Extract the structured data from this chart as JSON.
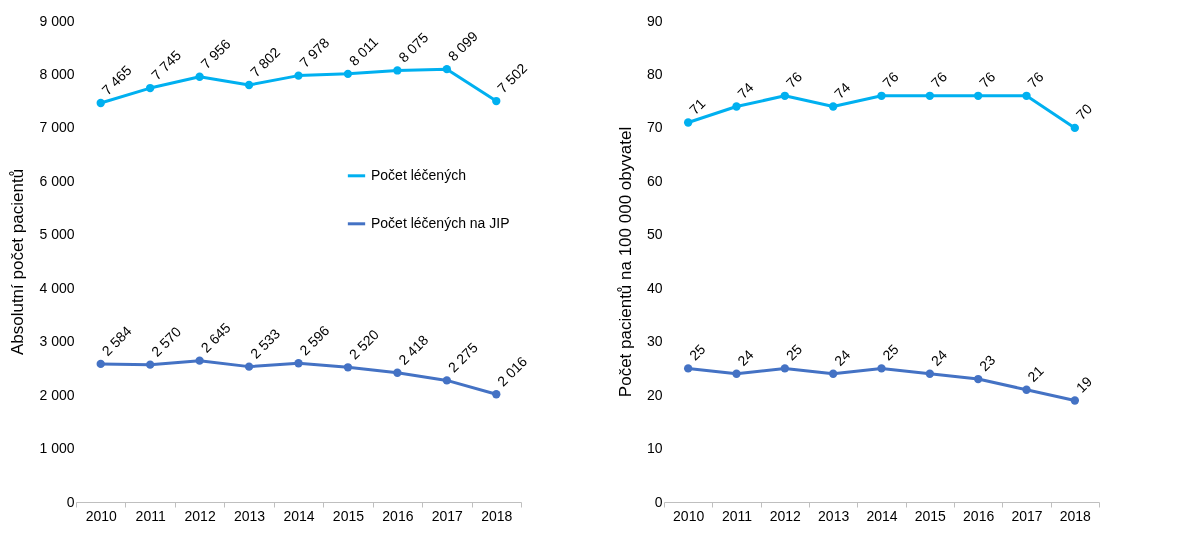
{
  "chart_data": [
    {
      "type": "line",
      "ylabel": "Absolutní počet pacientů",
      "categories": [
        "2010",
        "2011",
        "2012",
        "2013",
        "2014",
        "2015",
        "2016",
        "2017",
        "2018"
      ],
      "series": [
        {
          "name": "Počet léčených",
          "color": "#00b0f0",
          "values": [
            7465,
            7745,
            7956,
            7802,
            7978,
            8011,
            8075,
            8099,
            7502
          ],
          "value_labels": [
            "7 465",
            "7 745",
            "7 956",
            "7 802",
            "7 978",
            "8 011",
            "8 075",
            "8 099",
            "7 502"
          ]
        },
        {
          "name": "Počet léčených na JIP",
          "color": "#4472c4",
          "values": [
            2584,
            2570,
            2645,
            2533,
            2596,
            2520,
            2418,
            2275,
            2016
          ],
          "value_labels": [
            "2 584",
            "2 570",
            "2 645",
            "2 533",
            "2 596",
            "2 520",
            "2 418",
            "2 275",
            "2 016"
          ]
        }
      ],
      "ylim": [
        0,
        9000
      ],
      "yticks": [
        0,
        {
          "value": 1000,
          "label": "1 000"
        },
        {
          "value": 2000,
          "label": "2 000"
        },
        {
          "value": 3000,
          "label": "3 000"
        },
        {
          "value": 4000,
          "label": "4 000"
        },
        {
          "value": 5000,
          "label": "5 000"
        },
        {
          "value": 6000,
          "label": "6 000"
        },
        {
          "value": 7000,
          "label": "7 000"
        },
        {
          "value": 8000,
          "label": "8 000"
        },
        {
          "value": 9000,
          "label": "9 000"
        }
      ],
      "legend": "right",
      "marker": "circle",
      "line_style": "solid",
      "grid": false
    },
    {
      "type": "line",
      "ylabel": "Počet pacientů na 100 000 obyvatel",
      "categories": [
        "2010",
        "2011",
        "2012",
        "2013",
        "2014",
        "2015",
        "2016",
        "2017",
        "2018"
      ],
      "series": [
        {
          "name": "Počet léčených",
          "color": "#00b0f0",
          "values": [
            71,
            74,
            76,
            74,
            76,
            76,
            76,
            76,
            70
          ]
        },
        {
          "name": "Počet léčených na JIP",
          "color": "#4472c4",
          "values": [
            25,
            24,
            25,
            24,
            25,
            24,
            23,
            21,
            19
          ]
        }
      ],
      "ylim": [
        0,
        90
      ],
      "yticks": [
        0,
        10,
        20,
        30,
        40,
        50,
        60,
        70,
        80,
        90
      ],
      "data_labels": true,
      "legend": "right",
      "marker": "circle",
      "line_style": "solid",
      "grid": false
    }
  ]
}
